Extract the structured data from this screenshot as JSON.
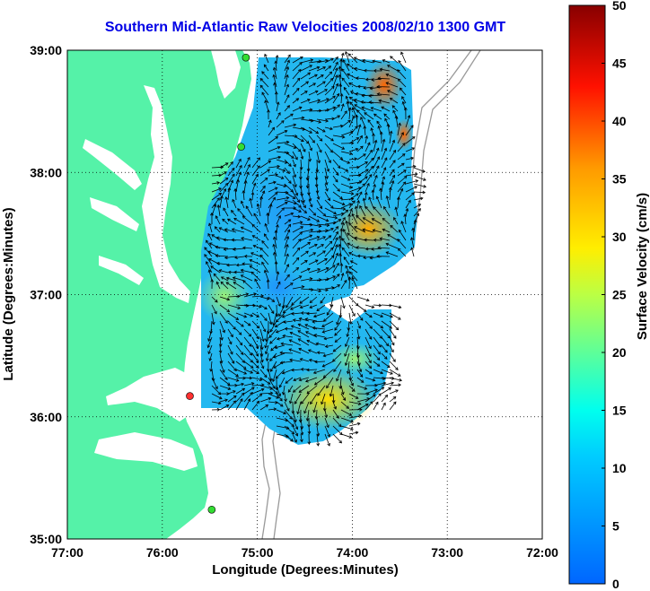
{
  "title": "Southern Mid-Atlantic Raw Velocities 2008/02/10 1300 GMT",
  "map": {
    "xlabel": "Longitude (Degrees:Minutes)",
    "ylabel": "Latitude (Degrees:Minutes)",
    "x_ticks": [
      "77:00",
      "76:00",
      "75:00",
      "74:00",
      "73:00",
      "72:00"
    ],
    "y_ticks": [
      "39:00",
      "38:00",
      "37:00",
      "36:00",
      "35:00"
    ],
    "lon_range": [
      -77,
      -72
    ],
    "lat_range": [
      35,
      39
    ],
    "grid": true,
    "land_color": "#55f2a8",
    "sites": [
      {
        "lon": -75.12,
        "lat": 38.94,
        "color": "#33dd33"
      },
      {
        "lon": -75.17,
        "lat": 38.21,
        "color": "#33dd33"
      },
      {
        "lon": -75.71,
        "lat": 36.17,
        "color": "#ff3030"
      },
      {
        "lon": -75.48,
        "lat": 35.24,
        "color": "#33dd33"
      }
    ]
  },
  "colorbar": {
    "label": "Surface Velocity (cm/s)",
    "min": 0,
    "max": 50,
    "ticks": [
      "0",
      "5",
      "10",
      "15",
      "20",
      "25",
      "30",
      "35",
      "40",
      "45",
      "50"
    ]
  }
}
